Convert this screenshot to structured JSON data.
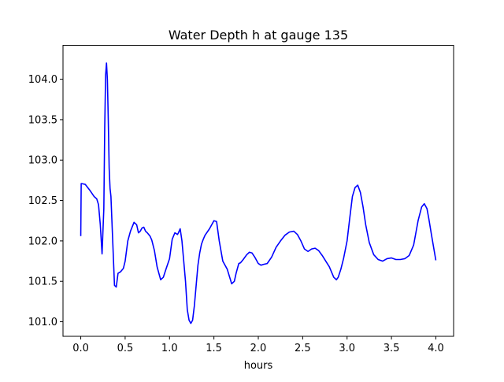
{
  "chart_data": {
    "type": "line",
    "title": "Water Depth h at gauge 135",
    "xlabel": "hours",
    "ylabel": "",
    "xlim": [
      -0.2,
      4.2
    ],
    "ylim": [
      100.82,
      104.42
    ],
    "xticks": [
      0.0,
      0.5,
      1.0,
      1.5,
      2.0,
      2.5,
      3.0,
      3.5,
      4.0
    ],
    "xtick_labels": [
      "0.0",
      "0.5",
      "1.0",
      "1.5",
      "2.0",
      "2.5",
      "3.0",
      "3.5",
      "4.0"
    ],
    "yticks": [
      101.0,
      101.5,
      102.0,
      102.5,
      103.0,
      103.5,
      104.0
    ],
    "ytick_labels": [
      "101.0",
      "101.5",
      "102.0",
      "102.5",
      "103.0",
      "103.5",
      "104.0"
    ],
    "grid": false,
    "series": [
      {
        "color": "#0000ff",
        "x": [
          0.0,
          0.005,
          0.05,
          0.1,
          0.15,
          0.18,
          0.2,
          0.22,
          0.24,
          0.26,
          0.27,
          0.28,
          0.29,
          0.3,
          0.31,
          0.32,
          0.33,
          0.34,
          0.36,
          0.38,
          0.4,
          0.42,
          0.45,
          0.48,
          0.5,
          0.53,
          0.56,
          0.6,
          0.63,
          0.65,
          0.67,
          0.69,
          0.71,
          0.73,
          0.75,
          0.78,
          0.8,
          0.83,
          0.86,
          0.9,
          0.93,
          0.96,
          1.0,
          1.03,
          1.06,
          1.09,
          1.1,
          1.12,
          1.14,
          1.16,
          1.18,
          1.2,
          1.22,
          1.24,
          1.26,
          1.28,
          1.3,
          1.32,
          1.34,
          1.36,
          1.38,
          1.4,
          1.45,
          1.5,
          1.53,
          1.56,
          1.6,
          1.65,
          1.7,
          1.73,
          1.75,
          1.78,
          1.8,
          1.83,
          1.87,
          1.9,
          1.93,
          1.96,
          2.0,
          2.03,
          2.06,
          2.1,
          2.15,
          2.2,
          2.25,
          2.3,
          2.35,
          2.4,
          2.44,
          2.48,
          2.52,
          2.56,
          2.6,
          2.64,
          2.68,
          2.72,
          2.76,
          2.8,
          2.85,
          2.88,
          2.9,
          2.93,
          2.96,
          3.0,
          3.03,
          3.06,
          3.09,
          3.12,
          3.15,
          3.18,
          3.21,
          3.25,
          3.3,
          3.35,
          3.4,
          3.45,
          3.5,
          3.55,
          3.6,
          3.65,
          3.7,
          3.75,
          3.8,
          3.84,
          3.87,
          3.9,
          3.92,
          3.95,
          4.0
        ],
        "y": [
          102.06,
          102.71,
          102.7,
          102.63,
          102.55,
          102.52,
          102.45,
          102.2,
          101.84,
          102.4,
          103.4,
          104.05,
          104.2,
          104.0,
          103.5,
          102.9,
          102.65,
          102.55,
          102.0,
          101.45,
          101.43,
          101.6,
          101.62,
          101.66,
          101.75,
          102.0,
          102.12,
          102.23,
          102.2,
          102.1,
          102.12,
          102.16,
          102.17,
          102.12,
          102.1,
          102.06,
          102.01,
          101.88,
          101.68,
          101.52,
          101.55,
          101.65,
          101.78,
          102.02,
          102.1,
          102.08,
          102.1,
          102.15,
          102.0,
          101.75,
          101.5,
          101.15,
          101.02,
          100.98,
          101.02,
          101.2,
          101.45,
          101.7,
          101.85,
          101.96,
          102.02,
          102.07,
          102.15,
          102.25,
          102.24,
          102.0,
          101.75,
          101.65,
          101.47,
          101.5,
          101.6,
          101.72,
          101.73,
          101.77,
          101.83,
          101.86,
          101.85,
          101.8,
          101.72,
          101.7,
          101.71,
          101.72,
          101.8,
          101.92,
          102.0,
          102.07,
          102.11,
          102.12,
          102.08,
          102.0,
          101.9,
          101.87,
          101.9,
          101.91,
          101.88,
          101.82,
          101.75,
          101.68,
          101.55,
          101.52,
          101.55,
          101.65,
          101.78,
          102.0,
          102.28,
          102.55,
          102.66,
          102.69,
          102.6,
          102.42,
          102.2,
          101.98,
          101.83,
          101.77,
          101.75,
          101.78,
          101.79,
          101.77,
          101.77,
          101.78,
          101.82,
          101.95,
          102.25,
          102.42,
          102.46,
          102.4,
          102.28,
          102.08,
          101.76
        ]
      }
    ]
  }
}
